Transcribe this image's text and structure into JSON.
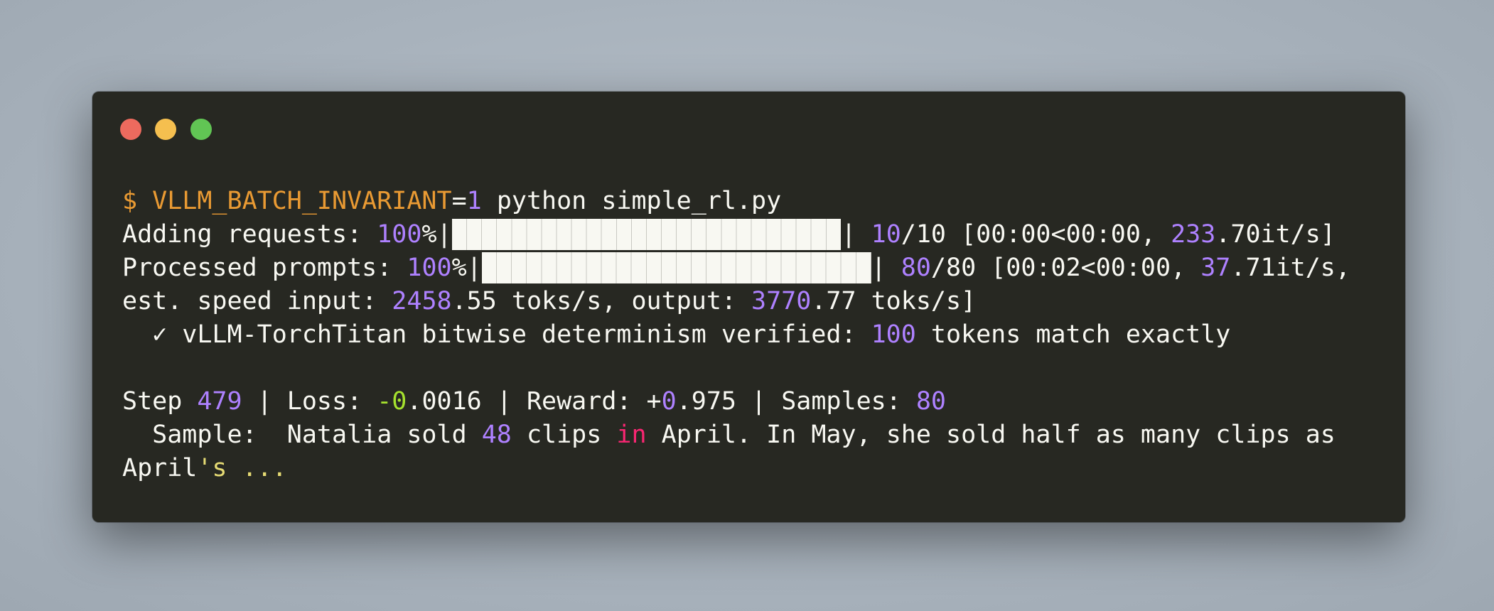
{
  "window": {
    "controls": [
      "close",
      "minimize",
      "maximize"
    ],
    "colors": {
      "background": "#272822",
      "close": "#ed6a5e",
      "minimize": "#f5bf4f",
      "maximize": "#61c554"
    }
  },
  "terminal": {
    "lines": [
      [
        {
          "t": "$ VLLM_BATCH_INVARIANT",
          "c": "orange"
        },
        {
          "t": "=",
          "c": "text"
        },
        {
          "t": "1",
          "c": "purple"
        },
        {
          "t": " python simple_rl.py",
          "c": "text"
        }
      ],
      [
        {
          "t": "Adding requests: ",
          "c": "text"
        },
        {
          "t": "100",
          "c": "purple"
        },
        {
          "t": "%|",
          "c": "text"
        },
        {
          "bar": 1.0,
          "cells": 26
        },
        {
          "t": "| ",
          "c": "text"
        },
        {
          "t": "10",
          "c": "purple"
        },
        {
          "t": "/10 [00:00<00:00, ",
          "c": "text"
        },
        {
          "t": "233",
          "c": "purple"
        },
        {
          "t": ".70it/s]",
          "c": "text"
        }
      ],
      [
        {
          "t": "Processed prompts: ",
          "c": "text"
        },
        {
          "t": "100",
          "c": "purple"
        },
        {
          "t": "%|",
          "c": "text"
        },
        {
          "bar": 1.0,
          "cells": 26
        },
        {
          "t": "| ",
          "c": "text"
        },
        {
          "t": "80",
          "c": "purple"
        },
        {
          "t": "/80 [00:02<00:00, ",
          "c": "text"
        },
        {
          "t": "37",
          "c": "purple"
        },
        {
          "t": ".71it/s,",
          "c": "text"
        }
      ],
      [
        {
          "t": "est. speed input: ",
          "c": "text"
        },
        {
          "t": "2458",
          "c": "purple"
        },
        {
          "t": ".55 toks/s, output: ",
          "c": "text"
        },
        {
          "t": "3770",
          "c": "purple"
        },
        {
          "t": ".77 toks/s]",
          "c": "text"
        }
      ],
      [
        {
          "t": "  ✓ vLLM-TorchTitan bitwise determinism verified: ",
          "c": "text"
        },
        {
          "t": "100",
          "c": "purple"
        },
        {
          "t": " tokens match exactly",
          "c": "text"
        }
      ],
      [],
      [
        {
          "t": "Step ",
          "c": "text"
        },
        {
          "t": "479",
          "c": "purple"
        },
        {
          "t": " | Loss: ",
          "c": "text"
        },
        {
          "t": "-0",
          "c": "green"
        },
        {
          "t": ".0016 | Reward: +",
          "c": "text"
        },
        {
          "t": "0",
          "c": "purple"
        },
        {
          "t": ".975 | Samples: ",
          "c": "text"
        },
        {
          "t": "80",
          "c": "purple"
        }
      ],
      [
        {
          "t": "  Sample:  Natalia sold ",
          "c": "text"
        },
        {
          "t": "48",
          "c": "purple"
        },
        {
          "t": " clips ",
          "c": "text"
        },
        {
          "t": "in",
          "c": "pink"
        },
        {
          "t": " April. In May, she sold half as many clips as",
          "c": "text"
        }
      ],
      [
        {
          "t": "April",
          "c": "text"
        },
        {
          "t": "'s ...",
          "c": "yellow"
        }
      ]
    ]
  }
}
